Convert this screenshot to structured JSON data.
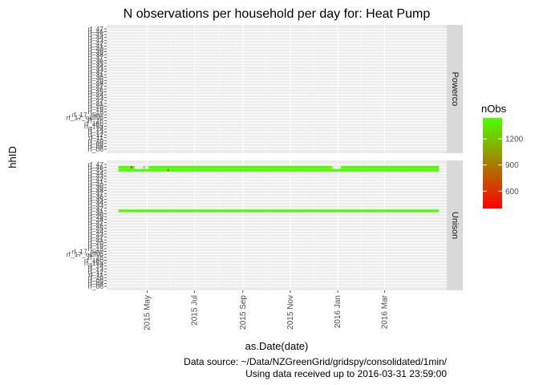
{
  "chart_data": {
    "type": "heatmap",
    "title": "N observations per household per day for: Heat Pump",
    "xlabel": "as.Date(date)",
    "ylabel": "hhID",
    "x_range": [
      "2015-03-10",
      "2016-05-20"
    ],
    "x_tick_labels": [
      "2015 May",
      "2015 Jul",
      "2015 Sep",
      "2015 Nov",
      "2016 Jan",
      "2016 Mar"
    ],
    "x_tick_dates": [
      "2015-05-01",
      "2015-07-01",
      "2015-09-01",
      "2015-11-01",
      "2016-01-01",
      "2016-03-01"
    ],
    "y_tick_labels": [
      "rf_06",
      "rf_08",
      "rf_09",
      "rf_10",
      "rf_11",
      "rf_12",
      "rf_13",
      "rf_14",
      "rf_15a",
      "rf_15b",
      "rf_16",
      "rf_17_oldNo",
      "rf_17_new",
      "rf_18",
      "rf_19",
      "rf_20",
      "rf_21",
      "rf_22",
      "rf_23",
      "rf_24",
      "rf_25",
      "rf_26",
      "rf_27",
      "rf_28",
      "rf_29",
      "rf_30",
      "rf_31",
      "rf_32",
      "rf_33",
      "rf_34",
      "rf_35",
      "rf_36",
      "rf_37",
      "rf_38",
      "rf_39",
      "rf_40",
      "rf_41",
      "rf_42",
      "rf_43",
      "rf_44",
      "rf_45",
      "rf_46",
      "rf_47"
    ],
    "facets": [
      "Powerco",
      "Unison"
    ],
    "series": [
      {
        "facet": "Unison",
        "hhID": "rf_46",
        "start": "2015-03-25",
        "end": "2016-05-10",
        "nObs": 1440
      },
      {
        "facet": "Unison",
        "hhID": "rf_45",
        "start": "2015-03-25",
        "end": "2016-05-10",
        "nObs": 1440
      },
      {
        "facet": "Unison",
        "hhID": "rf_31",
        "start": "2015-03-25",
        "end": "2016-05-10",
        "nObs": 1440
      }
    ],
    "gaps": [
      {
        "facet": "Unison",
        "hhID": "rf_46",
        "start": "2015-04-15",
        "end": "2015-05-03"
      },
      {
        "facet": "Unison",
        "hhID": "rf_46",
        "start": "2015-12-25",
        "end": "2016-01-05"
      }
    ],
    "low_marks": [
      {
        "facet": "Unison",
        "hhID": "rf_46",
        "date": "2015-04-11",
        "nObs": 500
      },
      {
        "facet": "Unison",
        "hhID": "rf_45",
        "date": "2015-05-28",
        "nObs": 700
      },
      {
        "facet": "Unison",
        "hhID": "rf_46",
        "date": "2015-04-27",
        "nObs": 1300
      }
    ],
    "legend": {
      "title": "nObs",
      "position": "right",
      "ticks": [
        600,
        900,
        1200
      ],
      "range": [
        400,
        1440
      ],
      "low_color": "#ff0000",
      "high_color": "#4dff00"
    },
    "grid": true,
    "caption": [
      "Data source: ~/Data/NZGreenGrid/gridspy/consolidated/1min/",
      "Using data received up to 2016-03-31 23:59:00"
    ]
  }
}
